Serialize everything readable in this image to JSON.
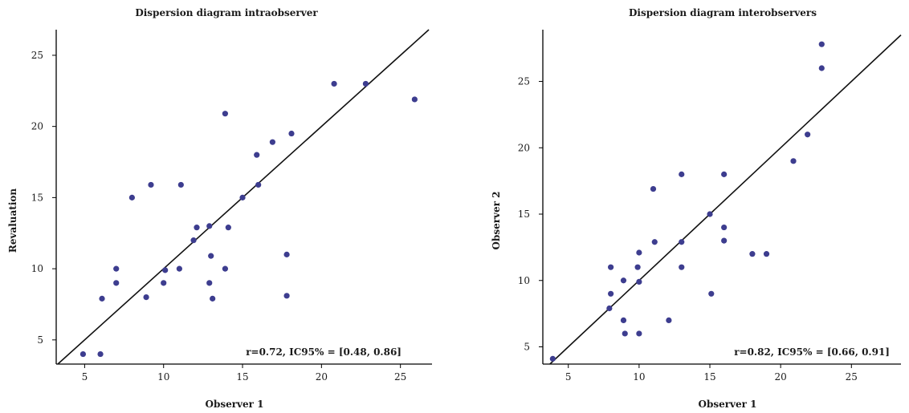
{
  "chart_data": [
    {
      "type": "scatter",
      "title": "Dispersion diagram intraobserver",
      "xlabel": "Observer 1",
      "ylabel": "Revaluation",
      "xlim": [
        3.2,
        27
      ],
      "ylim": [
        3.3,
        26.8
      ],
      "xticks": [
        5,
        10,
        15,
        20,
        25
      ],
      "yticks": [
        5,
        10,
        15,
        20,
        25
      ],
      "grid": false,
      "annotation": "r=0.72, IC95% = [0.48, 0.86]",
      "marker_color": "#3d3d8f",
      "line_color": "#111111",
      "identity_line": true,
      "points": [
        {
          "x": 4.9,
          "y": 4.0
        },
        {
          "x": 6.0,
          "y": 4.0
        },
        {
          "x": 6.1,
          "y": 7.9
        },
        {
          "x": 7.0,
          "y": 9.0
        },
        {
          "x": 7.0,
          "y": 10.0
        },
        {
          "x": 8.0,
          "y": 15.0
        },
        {
          "x": 8.9,
          "y": 8.0
        },
        {
          "x": 9.2,
          "y": 15.9
        },
        {
          "x": 10.0,
          "y": 9.0
        },
        {
          "x": 10.1,
          "y": 9.9
        },
        {
          "x": 11.0,
          "y": 10.0
        },
        {
          "x": 11.1,
          "y": 15.9
        },
        {
          "x": 11.9,
          "y": 12.0
        },
        {
          "x": 12.1,
          "y": 12.9
        },
        {
          "x": 12.9,
          "y": 13.0
        },
        {
          "x": 12.9,
          "y": 9.0
        },
        {
          "x": 13.0,
          "y": 10.9
        },
        {
          "x": 13.1,
          "y": 7.9
        },
        {
          "x": 13.9,
          "y": 20.9
        },
        {
          "x": 13.9,
          "y": 10.0
        },
        {
          "x": 14.1,
          "y": 12.9
        },
        {
          "x": 15.0,
          "y": 15.0
        },
        {
          "x": 15.9,
          "y": 18.0
        },
        {
          "x": 16.0,
          "y": 15.9
        },
        {
          "x": 16.9,
          "y": 18.9
        },
        {
          "x": 17.8,
          "y": 11.0
        },
        {
          "x": 17.8,
          "y": 8.1
        },
        {
          "x": 18.1,
          "y": 19.5
        },
        {
          "x": 20.8,
          "y": 23.0
        },
        {
          "x": 22.8,
          "y": 23.0
        },
        {
          "x": 25.9,
          "y": 21.9
        }
      ]
    },
    {
      "type": "scatter",
      "title": "Dispersion diagram interobservers",
      "xlabel": "Observer 1",
      "ylabel": "Observer 2",
      "xlim": [
        3.2,
        28.5
      ],
      "ylim": [
        3.7,
        28.9
      ],
      "xticks": [
        5,
        10,
        15,
        20,
        25
      ],
      "yticks": [
        5,
        10,
        15,
        20,
        25
      ],
      "grid": false,
      "annotation": "r=0.82, IC95% = [0.66, 0.91]",
      "marker_color": "#3d3d8f",
      "line_color": "#111111",
      "identity_line": true,
      "points": [
        {
          "x": 3.9,
          "y": 4.1
        },
        {
          "x": 7.9,
          "y": 7.9
        },
        {
          "x": 8.0,
          "y": 9.0
        },
        {
          "x": 8.0,
          "y": 11.0
        },
        {
          "x": 8.9,
          "y": 10.0
        },
        {
          "x": 8.9,
          "y": 7.0
        },
        {
          "x": 9.0,
          "y": 6.0
        },
        {
          "x": 9.9,
          "y": 11.0
        },
        {
          "x": 10.0,
          "y": 12.1
        },
        {
          "x": 10.0,
          "y": 9.9
        },
        {
          "x": 10.0,
          "y": 6.0
        },
        {
          "x": 11.0,
          "y": 16.9
        },
        {
          "x": 11.1,
          "y": 12.9
        },
        {
          "x": 12.1,
          "y": 7.0
        },
        {
          "x": 13.0,
          "y": 18.0
        },
        {
          "x": 13.0,
          "y": 12.9
        },
        {
          "x": 13.0,
          "y": 11.0
        },
        {
          "x": 15.0,
          "y": 15.0
        },
        {
          "x": 15.1,
          "y": 9.0
        },
        {
          "x": 16.0,
          "y": 18.0
        },
        {
          "x": 16.0,
          "y": 14.0
        },
        {
          "x": 16.0,
          "y": 13.0
        },
        {
          "x": 18.0,
          "y": 12.0
        },
        {
          "x": 19.0,
          "y": 12.0
        },
        {
          "x": 20.9,
          "y": 19.0
        },
        {
          "x": 21.9,
          "y": 21.0
        },
        {
          "x": 22.9,
          "y": 27.8
        },
        {
          "x": 22.9,
          "y": 26.0
        }
      ]
    }
  ]
}
